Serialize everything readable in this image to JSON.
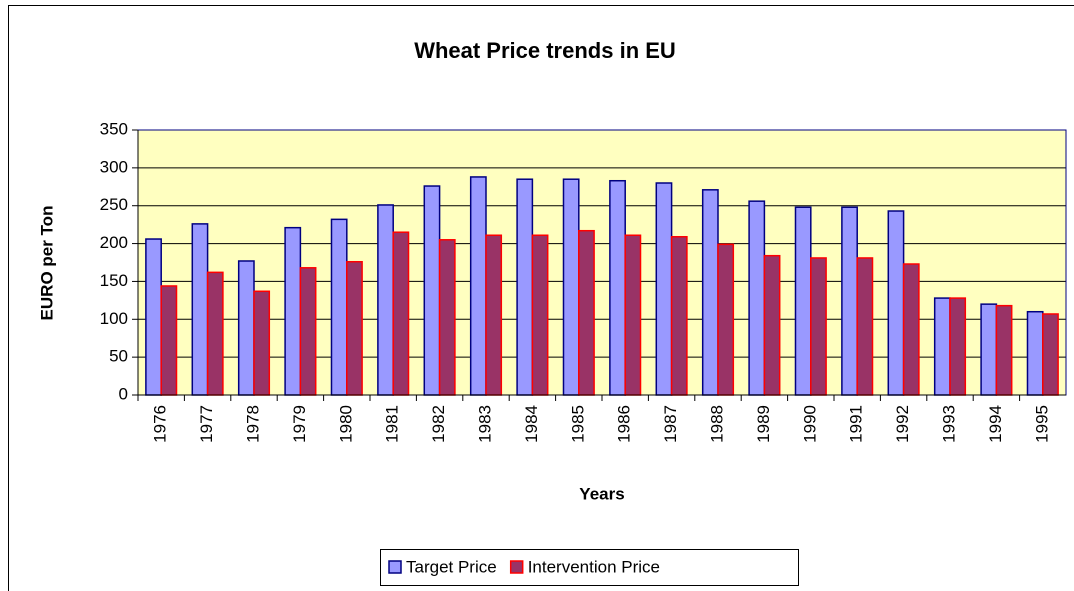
{
  "chart_data": {
    "type": "bar",
    "title": "Wheat Price trends in EU",
    "x_label": "Years",
    "y_label": "EURO per Ton",
    "categories": [
      "1976",
      "1977",
      "1978",
      "1979",
      "1980",
      "1981",
      "1982",
      "1983",
      "1984",
      "1985",
      "1986",
      "1987",
      "1988",
      "1989",
      "1990",
      "1991",
      "1992",
      "1993",
      "1994",
      "1995"
    ],
    "series": [
      {
        "name": "Target Price",
        "color": "#9999ff",
        "values": [
          206,
          226,
          177,
          221,
          232,
          251,
          276,
          288,
          285,
          285,
          283,
          280,
          271,
          256,
          248,
          248,
          243,
          128,
          120,
          110
        ]
      },
      {
        "name": "Intervention Price",
        "color": "#993366",
        "values": [
          144,
          162,
          137,
          168,
          176,
          215,
          205,
          211,
          211,
          217,
          211,
          209,
          199,
          184,
          181,
          181,
          173,
          128,
          118,
          107
        ]
      }
    ],
    "ylim": [
      0,
      350
    ],
    "yticks": [
      0,
      50,
      100,
      150,
      200,
      250,
      300,
      350
    ],
    "grid": true,
    "legend": "bottom"
  }
}
